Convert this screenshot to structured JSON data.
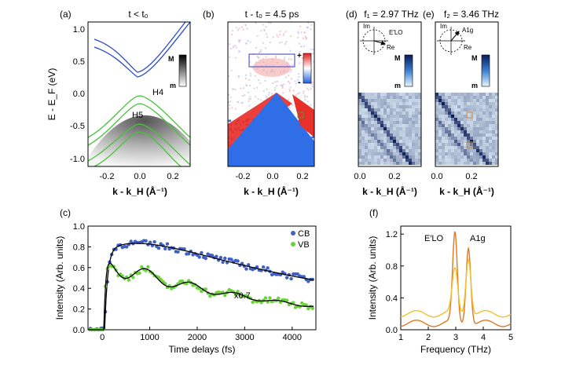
{
  "figure": {
    "panel_a": {
      "tag": "(a)",
      "title": "t < t₀",
      "ylabel": "E - E_F (eV)",
      "xlabel": "k - k_H (Å⁻¹)",
      "yticks": [
        "1.0",
        "0.5",
        "0.0",
        "-0.5",
        "-1.0"
      ],
      "xticks": [
        "-0.2",
        "0.0",
        "0.2"
      ],
      "band_labels": [
        "H4",
        "H5"
      ],
      "scale_max": "M",
      "scale_min": "m"
    },
    "panel_b": {
      "tag": "(b)",
      "title": "t - t₀ = 4.5 ps",
      "xlabel": "k - k_H (Å⁻¹)",
      "xticks": [
        "-0.2",
        "0.0",
        "0.2"
      ],
      "scale_max": "+",
      "scale_min": "-"
    },
    "panel_d": {
      "tag": "(d)",
      "title": "f₁ = 2.97 THz",
      "phasor_label": "E′LO",
      "im": "Im",
      "re": "Re",
      "scale_max": "M",
      "scale_min": "m",
      "xlabel": "k - k_H (Å⁻¹)",
      "xticks": [
        "0.0",
        "0.2"
      ]
    },
    "panel_e": {
      "tag": "(e)",
      "title": "f₂ = 3.46 THz",
      "phasor_label": "A1g",
      "im": "Im",
      "re": "Re",
      "scale_max": "M",
      "scale_min": "m",
      "xlabel": "k - k_H (Å⁻¹)",
      "xticks": [
        "0.0",
        "0.2"
      ]
    },
    "panel_c": {
      "tag": "(c)",
      "annotation": "x0.7",
      "legend": [
        {
          "name": "CB",
          "color": "#4060c8"
        },
        {
          "name": "VB",
          "color": "#6cd43a"
        }
      ]
    },
    "panel_f": {
      "tag": "(f)",
      "peak_labels": [
        "E′LO",
        "A1g"
      ]
    }
  },
  "chart_data": [
    {
      "type": "line",
      "panel": "(c)",
      "title": "",
      "xlabel": "Time delays (fs)",
      "ylabel": "Intensity (Arb. units)",
      "xlim": [
        -300,
        4500
      ],
      "ylim": [
        0,
        1.0
      ],
      "xticks": [
        "0",
        "1000",
        "2000",
        "3000",
        "4000"
      ],
      "yticks": [
        "0.0",
        "0.2",
        "0.4",
        "0.6",
        "0.8",
        "1.0"
      ],
      "series": [
        {
          "name": "CB",
          "color": "#4060c8",
          "model": {
            "t0": 50,
            "rise": 60,
            "amp": 0.86,
            "decay": 6000,
            "osc_amp": 0.035,
            "freq_thz": 2.97,
            "rise_scale": 700
          }
        },
        {
          "name": "VB",
          "color": "#6cd43a",
          "model": {
            "t0": 40,
            "rise": 40,
            "amp": 0.65,
            "decay": 4200,
            "osc_amp": 0.11,
            "freq_thz": 2.97,
            "damp": 1800
          }
        }
      ]
    },
    {
      "type": "line",
      "panel": "(f)",
      "title": "",
      "xlabel": "Frequency (THz)",
      "ylabel": "Intensity (Arb. units)",
      "xlim": [
        1,
        5
      ],
      "ylim": [
        0,
        1.3
      ],
      "xticks": [
        "1",
        "2",
        "3",
        "4",
        "5"
      ],
      "yticks": [
        "0.0",
        "0.4",
        "0.8",
        "1.2"
      ],
      "series": [
        {
          "name": "orange",
          "color": "#e07820",
          "peaks": [
            {
              "x": 2.97,
              "h": 1.12,
              "w": 0.12
            },
            {
              "x": 3.46,
              "h": 0.98,
              "w": 0.12
            }
          ],
          "base": 0.08
        },
        {
          "name": "yellow",
          "color": "#f5c02a",
          "peaks": [
            {
              "x": 2.97,
              "h": 0.55,
              "w": 0.14
            },
            {
              "x": 3.46,
              "h": 0.72,
              "w": 0.13
            }
          ],
          "base": 0.2
        }
      ]
    }
  ]
}
